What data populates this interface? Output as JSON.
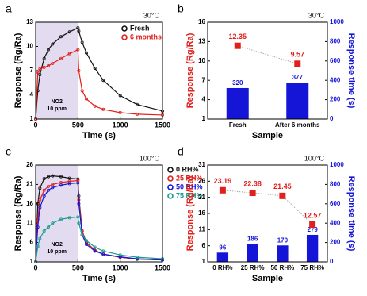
{
  "chart_data": [
    {
      "type": "line",
      "panel_label": "a",
      "corner_label": "30°C",
      "xlabel": "Time (s)",
      "ylabel": "Response (Rg/Ra)",
      "ylabel_color": "#000000",
      "xlim": [
        0,
        1500
      ],
      "xticks": [
        0,
        500,
        1000,
        1500
      ],
      "ylim": [
        1,
        13
      ],
      "yticks": [
        1,
        4,
        7,
        10,
        13
      ],
      "shaded_x": [
        0,
        500
      ],
      "shade_color": "#e3dcf0",
      "annotation": [
        "NO2",
        "10 ppm"
      ],
      "legend_loc": "upper right",
      "x": [
        0,
        25,
        50,
        100,
        150,
        200,
        300,
        400,
        500,
        510,
        550,
        600,
        700,
        800,
        1000,
        1200,
        1500
      ],
      "series": [
        {
          "name": "Fresh",
          "color": "#111111",
          "values": [
            1,
            4.5,
            6.5,
            8.5,
            9.6,
            10.3,
            11.2,
            11.8,
            12.3,
            11.9,
            10.5,
            9.2,
            7.3,
            5.8,
            3.9,
            2.8,
            2.0
          ]
        },
        {
          "name": "6 months",
          "color": "#e0201b",
          "values": [
            1,
            6.8,
            7.2,
            7.4,
            7.6,
            7.9,
            8.5,
            9.1,
            9.6,
            7.0,
            4.5,
            3.5,
            2.6,
            2.2,
            1.8,
            1.6,
            1.5
          ]
        }
      ]
    },
    {
      "type": "bar",
      "panel_label": "b",
      "corner_label": "30°C",
      "xlabel": "Sample",
      "ylabel": "Response (Rg/Ra)",
      "ylabel_color": "#e0201b",
      "y2label": "Response time (s)",
      "y2label_color": "#1515d8",
      "categories": [
        "Fresh",
        "After 6 months"
      ],
      "ylim": [
        1,
        16
      ],
      "yticks": [
        1,
        4,
        7,
        10,
        13,
        16
      ],
      "y2lim": [
        0,
        1000
      ],
      "y2ticks": [
        0,
        200,
        400,
        600,
        800,
        1000
      ],
      "series": [
        {
          "kind": "bar",
          "axis": "y2",
          "color": "#1515d8",
          "values": [
            320,
            377
          ]
        },
        {
          "kind": "scatter",
          "color": "#e0201b",
          "values": [
            12.35,
            9.57
          ]
        }
      ]
    },
    {
      "type": "line",
      "panel_label": "c",
      "corner_label": "100°C",
      "xlabel": "Time (s)",
      "ylabel": "Response (Rg/Ra)",
      "ylabel_color": "#000000",
      "xlim": [
        0,
        1500
      ],
      "xticks": [
        0,
        500,
        1000,
        1500
      ],
      "ylim": [
        1,
        26
      ],
      "yticks": [
        1,
        6,
        11,
        16,
        21,
        26
      ],
      "shaded_x": [
        0,
        500
      ],
      "shade_color": "#e3dcf0",
      "annotation": [
        "NO2",
        "10 ppm"
      ],
      "legend_loc": "outside right",
      "x": [
        0,
        25,
        50,
        100,
        150,
        200,
        300,
        400,
        500,
        510,
        550,
        600,
        700,
        800,
        1000,
        1200,
        1500
      ],
      "series": [
        {
          "name": "0 RH%",
          "color": "#111111",
          "values": [
            1,
            16,
            20,
            22.5,
            23,
            23.2,
            23,
            22.6,
            22.4,
            18,
            9,
            6,
            4,
            3,
            2.2,
            1.7,
            1.5
          ]
        },
        {
          "name": "25 RH%",
          "color": "#e0201b",
          "values": [
            1,
            12,
            17,
            19.5,
            20.5,
            21,
            21.5,
            21.8,
            22,
            17,
            9,
            6,
            4,
            3,
            2.2,
            1.8,
            1.5
          ]
        },
        {
          "name": "50 RH%",
          "color": "#1515d8",
          "values": [
            1,
            10,
            15,
            18,
            19.5,
            20.2,
            20.8,
            21.2,
            21.4,
            16,
            8,
            5.5,
            3.8,
            3,
            2.3,
            1.8,
            1.5
          ]
        },
        {
          "name": "75 RH%",
          "color": "#1a9a8f",
          "values": [
            1,
            5,
            7,
            9,
            10,
            11,
            12,
            12.4,
            12.6,
            11,
            8,
            6.5,
            4.8,
            3.8,
            2.8,
            2.2,
            1.8
          ]
        }
      ]
    },
    {
      "type": "bar",
      "panel_label": "d",
      "corner_label": "100°C",
      "xlabel": "Sample",
      "ylabel": "Response (Rg/Ra)",
      "ylabel_color": "#e0201b",
      "y2label": "Response time (s)",
      "y2label_color": "#1515d8",
      "categories": [
        "0 RH%",
        "25 RH%",
        "50 RH%",
        "75 RH%"
      ],
      "ylim": [
        1,
        31
      ],
      "yticks": [
        1,
        6,
        11,
        16,
        21,
        26,
        31
      ],
      "y2lim": [
        0,
        1000
      ],
      "y2ticks": [
        0,
        200,
        400,
        600,
        800,
        1000
      ],
      "series": [
        {
          "kind": "bar",
          "axis": "y2",
          "color": "#1515d8",
          "values": [
            96,
            186,
            170,
            279
          ]
        },
        {
          "kind": "scatter",
          "color": "#e0201b",
          "values": [
            23.19,
            22.38,
            21.45,
            12.57
          ]
        }
      ]
    }
  ]
}
